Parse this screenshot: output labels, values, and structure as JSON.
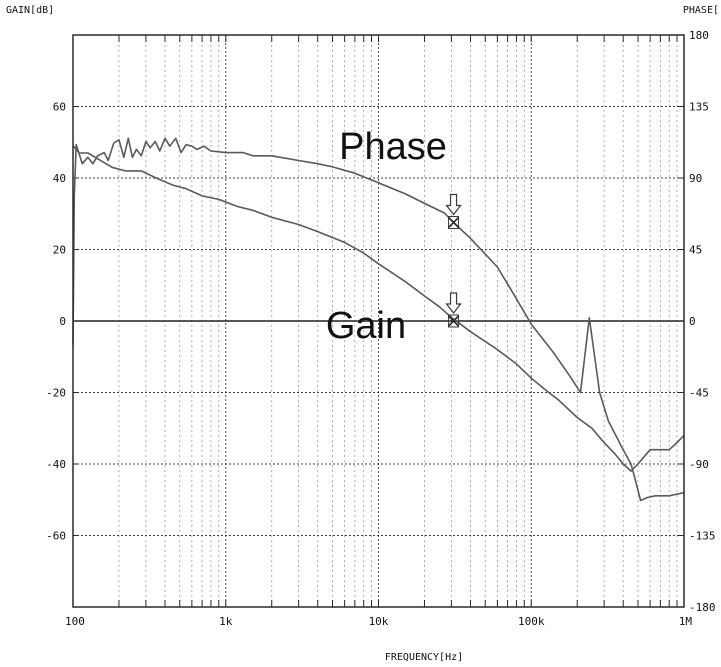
{
  "chart_data": {
    "type": "line",
    "title": "",
    "xlabel": "FREQUENCY[Hz]",
    "ylabel_left": "GAIN[dB]",
    "ylabel_right": "PHASE[",
    "x_scale": "log",
    "xlim": [
      100,
      1000000
    ],
    "ylim_left": [
      -80,
      80
    ],
    "ylim_right": [
      -180,
      180
    ],
    "grid": true,
    "x_ticks": [
      {
        "value": 100,
        "label": "100"
      },
      {
        "value": 1000,
        "label": "1k"
      },
      {
        "value": 10000,
        "label": "10k"
      },
      {
        "value": 100000,
        "label": "100k"
      },
      {
        "value": 1000000,
        "label": "1M"
      }
    ],
    "y_ticks_left": [
      {
        "value": 60,
        "label": "60"
      },
      {
        "value": 40,
        "label": "40"
      },
      {
        "value": 20,
        "label": "20"
      },
      {
        "value": 0,
        "label": "0"
      },
      {
        "value": -20,
        "label": "-20"
      },
      {
        "value": -40,
        "label": "-40"
      },
      {
        "value": -60,
        "label": "-60"
      }
    ],
    "y_ticks_right": [
      {
        "value": 180,
        "label": "180"
      },
      {
        "value": 135,
        "label": "135"
      },
      {
        "value": 90,
        "label": "90"
      },
      {
        "value": 45,
        "label": "45"
      },
      {
        "value": 0,
        "label": "0"
      },
      {
        "value": -45,
        "label": "-45"
      },
      {
        "value": -90,
        "label": "-90"
      },
      {
        "value": -135,
        "label": "-135"
      },
      {
        "value": -180,
        "label": "-180"
      }
    ],
    "series": [
      {
        "name": "Phase",
        "axis": "right",
        "points": [
          [
            100,
            -15
          ],
          [
            102,
            79
          ],
          [
            105,
            111
          ],
          [
            115,
            99
          ],
          [
            125,
            103
          ],
          [
            135,
            99
          ],
          [
            145,
            104
          ],
          [
            160,
            106
          ],
          [
            170,
            101
          ],
          [
            185,
            112
          ],
          [
            200,
            114
          ],
          [
            215,
            103
          ],
          [
            230,
            115
          ],
          [
            245,
            103
          ],
          [
            260,
            108
          ],
          [
            280,
            104
          ],
          [
            300,
            113
          ],
          [
            320,
            109
          ],
          [
            345,
            113
          ],
          [
            370,
            107
          ],
          [
            400,
            115
          ],
          [
            430,
            110
          ],
          [
            470,
            115
          ],
          [
            510,
            106
          ],
          [
            550,
            111
          ],
          [
            600,
            110
          ],
          [
            650,
            108
          ],
          [
            720,
            110
          ],
          [
            800,
            107
          ],
          [
            1000,
            106
          ],
          [
            1300,
            106
          ],
          [
            1500,
            104
          ],
          [
            2000,
            104
          ],
          [
            3000,
            101
          ],
          [
            4000,
            99
          ],
          [
            5000,
            97
          ],
          [
            7000,
            93
          ],
          [
            10000,
            87
          ],
          [
            15000,
            80
          ],
          [
            20000,
            74
          ],
          [
            27000,
            68
          ],
          [
            31000,
            62
          ],
          [
            40000,
            52
          ],
          [
            60000,
            34
          ],
          [
            80000,
            14
          ],
          [
            100000,
            -2
          ],
          [
            140000,
            -20
          ],
          [
            180000,
            -35
          ],
          [
            210000,
            -45
          ],
          [
            240000,
            2
          ],
          [
            280000,
            -45
          ],
          [
            320000,
            -63
          ],
          [
            400000,
            -81
          ],
          [
            450000,
            -90
          ],
          [
            480000,
            -100
          ],
          [
            520000,
            -113
          ],
          [
            580000,
            -111
          ],
          [
            650000,
            -110
          ],
          [
            800000,
            -110
          ],
          [
            1000000,
            -108
          ]
        ]
      },
      {
        "name": "Gain",
        "axis": "left",
        "points": [
          [
            100,
            49
          ],
          [
            110,
            47
          ],
          [
            125,
            47
          ],
          [
            150,
            45
          ],
          [
            180,
            43
          ],
          [
            220,
            42
          ],
          [
            280,
            42
          ],
          [
            350,
            40
          ],
          [
            450,
            38
          ],
          [
            550,
            37
          ],
          [
            700,
            35
          ],
          [
            900,
            34
          ],
          [
            1200,
            32
          ],
          [
            1500,
            31
          ],
          [
            2000,
            29
          ],
          [
            3000,
            27
          ],
          [
            4000,
            25
          ],
          [
            6000,
            22
          ],
          [
            8000,
            19
          ],
          [
            10000,
            16
          ],
          [
            15000,
            11
          ],
          [
            20000,
            7
          ],
          [
            25000,
            4
          ],
          [
            30000,
            1
          ],
          [
            40000,
            -3
          ],
          [
            60000,
            -8
          ],
          [
            80000,
            -12
          ],
          [
            100000,
            -16
          ],
          [
            130000,
            -20
          ],
          [
            150000,
            -22
          ],
          [
            200000,
            -27
          ],
          [
            250000,
            -30
          ],
          [
            300000,
            -34
          ],
          [
            350000,
            -37
          ],
          [
            400000,
            -40
          ],
          [
            450000,
            -42
          ],
          [
            500000,
            -40
          ],
          [
            600000,
            -36
          ],
          [
            700000,
            -36
          ],
          [
            800000,
            -36
          ],
          [
            900000,
            -34
          ],
          [
            1000000,
            -32
          ]
        ]
      }
    ],
    "annotations": [
      {
        "text": "Phase",
        "series": "Phase"
      },
      {
        "text": "Gain",
        "series": "Gain"
      }
    ],
    "markers": [
      {
        "series": "Phase",
        "x": 31000,
        "y": 62
      },
      {
        "series": "Gain",
        "x": 31000,
        "y": 0
      }
    ],
    "colors": {
      "background": "#ffffff",
      "trace": "#5a5a5a",
      "grid_minor": "#9a9a9a",
      "grid_major": "#404040",
      "text": "#111111"
    }
  }
}
